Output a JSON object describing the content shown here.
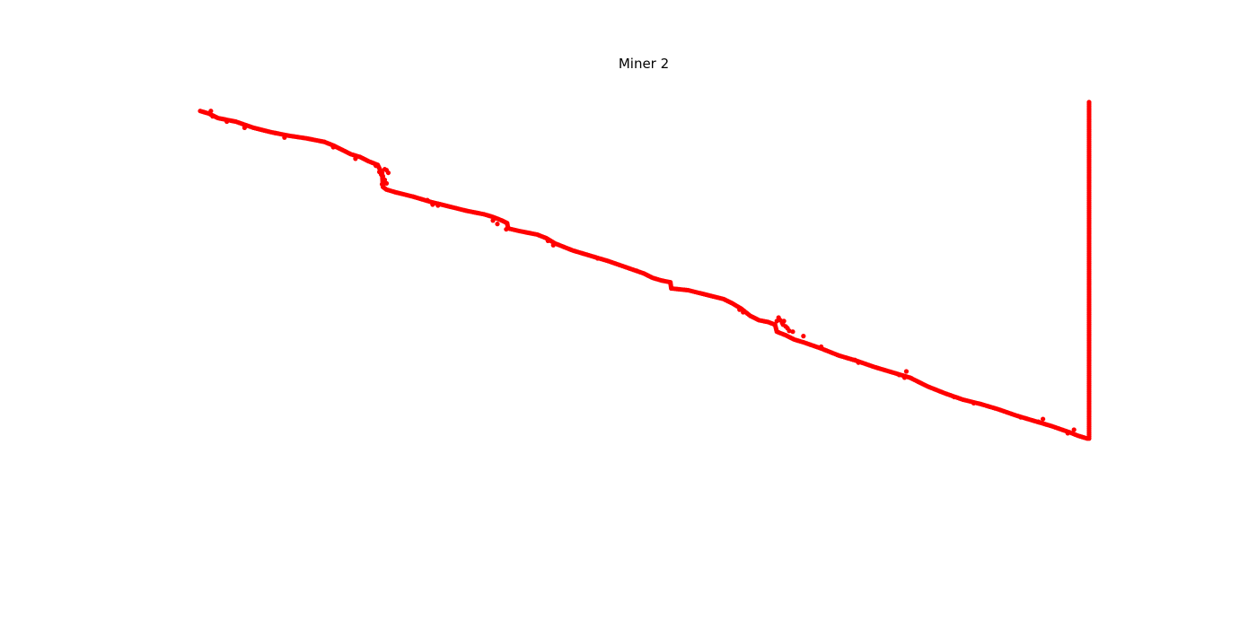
{
  "chart_data": {
    "type": "scatter",
    "title": "Miner 2",
    "xlabel": "",
    "ylabel": "",
    "axes_visible": false,
    "grid": false,
    "legend": "none",
    "marker": "circle",
    "color": "#ff0000",
    "xlim": [
      0,
      1000
    ],
    "ylim": [
      0,
      500
    ],
    "series": [
      {
        "color": "#ff0000",
        "trend": [
          [
            0,
            482
          ],
          [
            10,
            479
          ],
          [
            20,
            474
          ],
          [
            40,
            470
          ],
          [
            60,
            463
          ],
          [
            80,
            458
          ],
          [
            100,
            454
          ],
          [
            120,
            451
          ],
          [
            140,
            447
          ],
          [
            150,
            443
          ],
          [
            160,
            438
          ],
          [
            170,
            433
          ],
          [
            180,
            430
          ],
          [
            190,
            425
          ],
          [
            200,
            421
          ],
          [
            203,
            415
          ],
          [
            205,
            412
          ],
          [
            206,
            396
          ],
          [
            210,
            393
          ],
          [
            220,
            390
          ],
          [
            240,
            385
          ],
          [
            260,
            379
          ],
          [
            280,
            374
          ],
          [
            300,
            369
          ],
          [
            320,
            365
          ],
          [
            330,
            362
          ],
          [
            340,
            358
          ],
          [
            346,
            355
          ],
          [
            347,
            349
          ],
          [
            360,
            346
          ],
          [
            380,
            342
          ],
          [
            390,
            338
          ],
          [
            400,
            332
          ],
          [
            410,
            328
          ],
          [
            420,
            324
          ],
          [
            440,
            318
          ],
          [
            460,
            312
          ],
          [
            480,
            305
          ],
          [
            500,
            298
          ],
          [
            510,
            293
          ],
          [
            520,
            290
          ],
          [
            530,
            288
          ],
          [
            531,
            281
          ],
          [
            550,
            279
          ],
          [
            570,
            274
          ],
          [
            590,
            269
          ],
          [
            600,
            264
          ],
          [
            610,
            258
          ],
          [
            620,
            250
          ],
          [
            630,
            245
          ],
          [
            640,
            243
          ],
          [
            648,
            240
          ],
          [
            650,
            232
          ],
          [
            660,
            228
          ],
          [
            670,
            223
          ],
          [
            680,
            220
          ],
          [
            700,
            213
          ],
          [
            720,
            205
          ],
          [
            740,
            199
          ],
          [
            760,
            192
          ],
          [
            780,
            186
          ],
          [
            800,
            180
          ],
          [
            820,
            170
          ],
          [
            840,
            162
          ],
          [
            860,
            155
          ],
          [
            880,
            150
          ],
          [
            900,
            144
          ],
          [
            920,
            137
          ],
          [
            940,
            131
          ],
          [
            960,
            125
          ],
          [
            980,
            118
          ],
          [
            990,
            114
          ],
          [
            1000,
            111
          ]
        ],
        "jitter_points": [
          [
            12,
            482
          ],
          [
            14,
            476
          ],
          [
            30,
            470
          ],
          [
            50,
            463
          ],
          [
            85,
            457
          ],
          [
            95,
            452
          ],
          [
            150,
            441
          ],
          [
            175,
            428
          ],
          [
            198,
            420
          ],
          [
            202,
            413
          ],
          [
            204,
            410
          ],
          [
            206,
            408
          ],
          [
            208,
            404
          ],
          [
            210,
            400
          ],
          [
            205,
            399
          ],
          [
            212,
            412
          ],
          [
            210,
            415
          ],
          [
            208,
            416
          ],
          [
            256,
            381
          ],
          [
            262,
            376
          ],
          [
            268,
            375
          ],
          [
            330,
            358
          ],
          [
            335,
            354
          ],
          [
            345,
            348
          ],
          [
            392,
            335
          ],
          [
            398,
            330
          ],
          [
            448,
            315
          ],
          [
            492,
            301
          ],
          [
            608,
            257
          ],
          [
            612,
            254
          ],
          [
            652,
            248
          ],
          [
            654,
            245
          ],
          [
            656,
            242
          ],
          [
            657,
            240
          ],
          [
            660,
            238
          ],
          [
            662,
            236
          ],
          [
            664,
            233
          ],
          [
            668,
            232
          ],
          [
            658,
            244
          ],
          [
            650,
            244
          ],
          [
            680,
            227
          ],
          [
            700,
            215
          ],
          [
            738,
            200
          ],
          [
            742,
            197
          ],
          [
            788,
            183
          ],
          [
            794,
            180
          ],
          [
            796,
            187
          ],
          [
            850,
            158
          ],
          [
            872,
            151
          ],
          [
            925,
            135
          ],
          [
            945,
            130
          ],
          [
            950,
            133
          ],
          [
            978,
            117
          ],
          [
            985,
            121
          ]
        ],
        "vertical_segment": {
          "x": 1002,
          "y_from": 111,
          "y_to": 492
        }
      }
    ]
  }
}
